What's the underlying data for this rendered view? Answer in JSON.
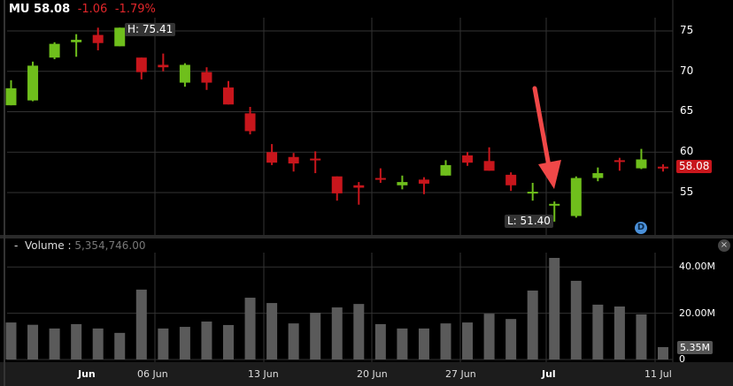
{
  "header": {
    "symbol": "MU",
    "price": "58.08",
    "change": "-1.06",
    "change_pct": "-1.79%"
  },
  "colors": {
    "up": "#6fbf1c",
    "down": "#c8161c",
    "volume": "#5a5a5a",
    "annotation_arrow": "#f04848"
  },
  "price_axis": {
    "ticks": [
      "75",
      "70",
      "65",
      "60",
      "55"
    ],
    "last_label": "58.08"
  },
  "annotations": {
    "high_label": "H: 75.41",
    "low_label": "L: 51.40",
    "dividend_marker": "D"
  },
  "volume_panel": {
    "title": "Volume",
    "separator": ":",
    "value": "5,354,746.00",
    "ticks": [
      "40.00M",
      "20.00M",
      "0"
    ],
    "last_label": "5.35M",
    "collapse": "-",
    "close": "×"
  },
  "x_axis": {
    "labels": [
      "Jun",
      "06 Jun",
      "13 Jun",
      "20 Jun",
      "27 Jun",
      "Jul",
      "11 Jul"
    ]
  },
  "chart_data": {
    "type": "candlestick",
    "price_range": [
      50,
      76.5
    ],
    "volume_range_millions": [
      0,
      46
    ],
    "ohlc": [
      [
        65.8,
        68.9,
        65.8,
        67.9
      ],
      [
        66.4,
        71.2,
        66.3,
        70.7
      ],
      [
        71.7,
        73.6,
        71.5,
        73.4
      ],
      [
        73.6,
        74.6,
        71.8,
        73.9
      ],
      [
        74.5,
        75.4,
        72.6,
        73.5
      ],
      [
        73.1,
        75.41,
        73.1,
        75.4
      ],
      [
        71.7,
        71.7,
        69.0,
        69.9
      ],
      [
        70.8,
        72.2,
        70.0,
        70.5
      ],
      [
        68.6,
        71.0,
        68.1,
        70.8
      ],
      [
        69.9,
        70.5,
        67.7,
        68.6
      ],
      [
        68.0,
        68.8,
        65.9,
        65.9
      ],
      [
        64.8,
        65.6,
        62.2,
        62.6
      ],
      [
        60.0,
        61.0,
        58.4,
        58.7
      ],
      [
        59.4,
        59.9,
        57.6,
        58.6
      ],
      [
        59.2,
        60.1,
        57.4,
        59.0
      ],
      [
        57.0,
        57.0,
        54.0,
        54.9
      ],
      [
        55.9,
        56.3,
        53.5,
        55.6
      ],
      [
        56.8,
        58.0,
        56.2,
        56.6
      ],
      [
        55.9,
        57.1,
        55.4,
        56.3
      ],
      [
        56.6,
        56.9,
        54.8,
        56.1
      ],
      [
        57.1,
        59.0,
        57.1,
        58.4
      ],
      [
        59.6,
        60.0,
        58.3,
        58.7
      ],
      [
        58.9,
        60.6,
        57.7,
        57.7
      ],
      [
        57.2,
        57.5,
        55.2,
        55.9
      ],
      [
        54.9,
        56.2,
        54.0,
        55.1
      ],
      [
        53.4,
        53.9,
        51.4,
        53.6
      ],
      [
        52.1,
        57.0,
        51.9,
        56.8
      ],
      [
        56.8,
        58.1,
        56.4,
        57.4
      ],
      [
        59.0,
        59.3,
        57.7,
        58.8
      ],
      [
        58.0,
        60.4,
        57.9,
        59.1
      ],
      [
        58.2,
        58.5,
        57.6,
        58.08
      ]
    ],
    "volume_millions": [
      16,
      15,
      13.4,
      15.3,
      13.4,
      11.5,
      30.2,
      13.4,
      14.1,
      16.4,
      14.9,
      26.7,
      24.4,
      15.6,
      20.2,
      22.5,
      24,
      15.3,
      13.4,
      13.4,
      15.6,
      16,
      19.8,
      17.5,
      29.8,
      43.9,
      34,
      23.7,
      22.9,
      19.5,
      5.35
    ]
  }
}
